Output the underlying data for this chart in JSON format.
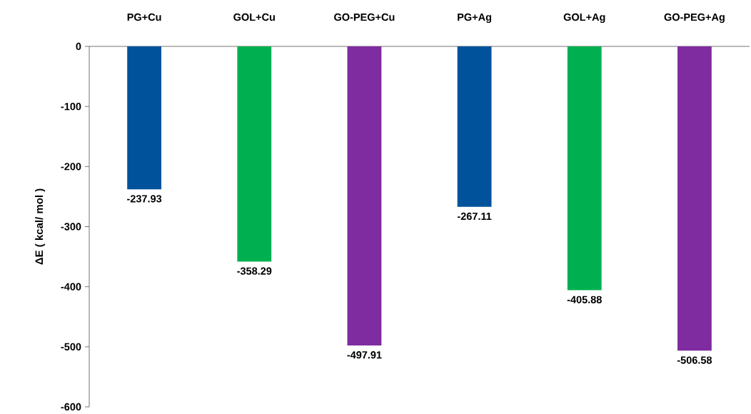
{
  "chart_data": {
    "type": "bar",
    "ylabel": "ΔE ( kcal/ mol )",
    "categories": [
      "PG+Cu",
      "GOL+Cu",
      "GO-PEG+Cu",
      "PG+Ag",
      "GOL+Ag",
      "GO-PEG+Ag"
    ],
    "values": [
      -237.93,
      -358.29,
      -497.91,
      -267.11,
      -405.88,
      -506.58
    ],
    "colors": [
      "#00529b",
      "#00b050",
      "#7f2ca0",
      "#00529b",
      "#00b050",
      "#7f2ca0"
    ],
    "ylim": [
      -600,
      0
    ],
    "yticks": [
      -600,
      -500,
      -400,
      -300,
      -200,
      -100,
      0
    ],
    "data_labels": true,
    "grid": false
  }
}
